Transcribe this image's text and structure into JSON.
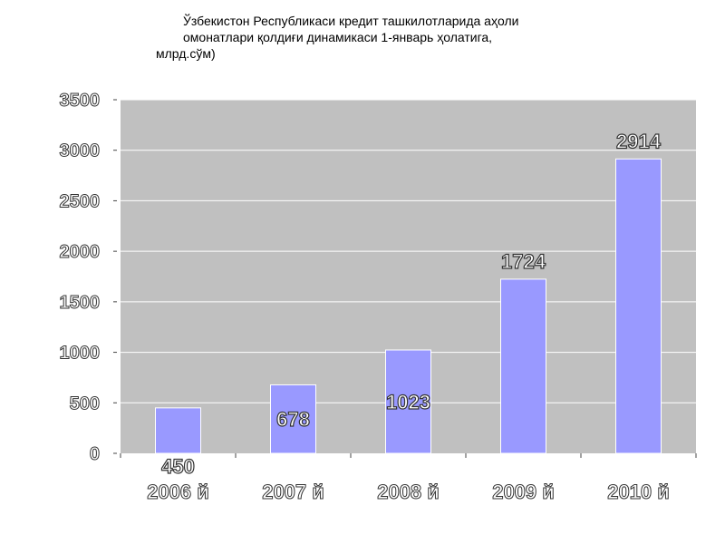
{
  "title_lines": [
    "Ўзбекистон Республикаси  кредит ташкилотларида аҳоли",
    "омонатлари қолдиғи динамикаси 1-январь ҳолатига,",
    "млрд.сўм)"
  ],
  "chart_data": {
    "type": "bar",
    "categories": [
      "2006 й",
      "2007 й",
      "2008 й",
      "2009 й",
      "2010 й"
    ],
    "values": [
      450,
      678,
      1023,
      1724,
      2914
    ],
    "data_labels": [
      "450",
      "678",
      "1023",
      "1724",
      "2914"
    ],
    "y_ticks": [
      "0",
      "500",
      "1000",
      "1500",
      "2000",
      "2500",
      "3000",
      "3500"
    ],
    "ylim": [
      0,
      3500
    ],
    "grid": true,
    "colors": {
      "plot_bg": "#c0c0c0",
      "bar": "#9999ff",
      "grid": "#ffffff"
    }
  }
}
